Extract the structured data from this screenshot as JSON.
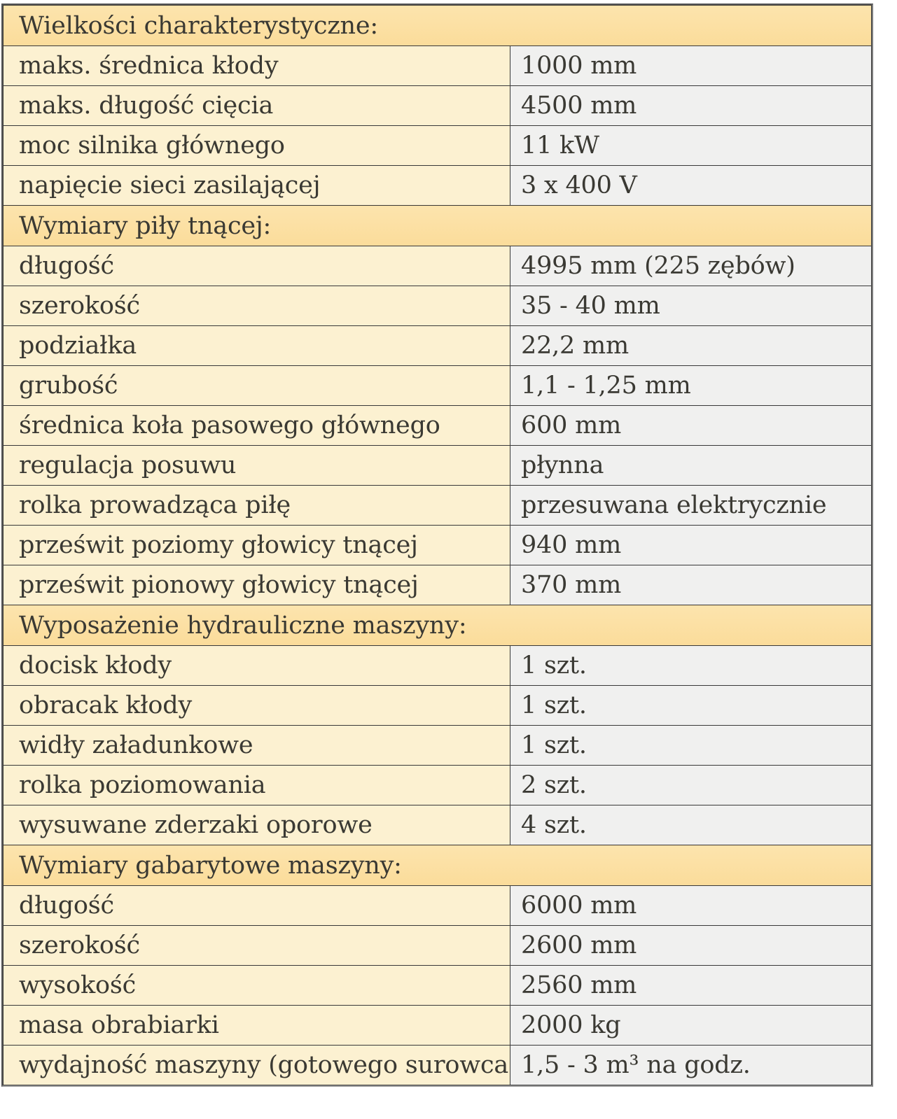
{
  "colors": {
    "section_header_bg": "#fbdfa0",
    "label_cell_bg": "#fcf1d1",
    "value_cell_bg": "#f0f0ef",
    "border_inner": "#383838",
    "border_outer_right": "#7d7d7d",
    "text": "#3a3933"
  },
  "sections": [
    {
      "header": "Wielkości charakterystyczne:",
      "rows": [
        {
          "label": "maks. średnica kłody",
          "value": "1000 mm"
        },
        {
          "label": "maks. długość cięcia",
          "value": "4500 mm"
        },
        {
          "label": "moc silnika głównego",
          "value": "11 kW"
        },
        {
          "label": "napięcie sieci zasilającej",
          "value": "3 x 400 V"
        }
      ]
    },
    {
      "header": "Wymiary piły tnącej:",
      "rows": [
        {
          "label": "długość",
          "value": "4995 mm (225 zębów)"
        },
        {
          "label": "szerokość",
          "value": "35 - 40 mm"
        },
        {
          "label": "podziałka",
          "value": "22,2 mm"
        },
        {
          "label": "grubość",
          "value": "1,1 - 1,25 mm"
        },
        {
          "label": "średnica koła pasowego głównego",
          "value": "600 mm"
        },
        {
          "label": "regulacja posuwu",
          "value": "płynna"
        },
        {
          "label": "rolka prowadząca piłę",
          "value": "przesuwana elektrycznie"
        },
        {
          "label": "prześwit poziomy głowicy tnącej",
          "value": "940 mm"
        },
        {
          "label": "prześwit pionowy głowicy tnącej",
          "value": "370 mm"
        }
      ]
    },
    {
      "header": "Wyposażenie hydrauliczne maszyny:",
      "rows": [
        {
          "label": "docisk kłody",
          "value": "1 szt."
        },
        {
          "label": "obracak kłody",
          "value": "1 szt."
        },
        {
          "label": "widły załadunkowe",
          "value": "1 szt."
        },
        {
          "label": "rolka poziomowania",
          "value": "2 szt."
        },
        {
          "label": "wysuwane zderzaki oporowe",
          "value": "4 szt."
        }
      ]
    },
    {
      "header": "Wymiary gabarytowe maszyny:",
      "rows": [
        {
          "label": "długość",
          "value": "6000 mm"
        },
        {
          "label": "szerokość",
          "value": "2600 mm"
        },
        {
          "label": "wysokość",
          "value": "2560 mm"
        },
        {
          "label": "masa obrabiarki",
          "value": "2000 kg"
        },
        {
          "label": "wydajność maszyny (gotowego surowca)",
          "value": "1,5 - 3 m³ na godz."
        }
      ]
    }
  ]
}
